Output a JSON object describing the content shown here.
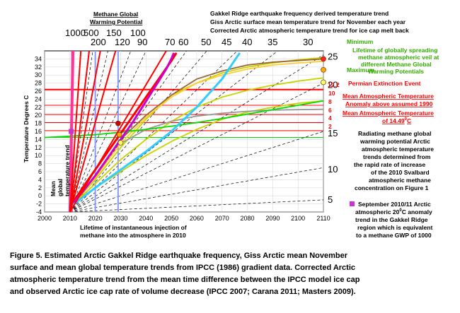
{
  "chart_data": {
    "type": "line",
    "title_lines": [
      "Gakkel Ridge earthquake frequency derived temperature trend",
      "Giss Arctic surface mean temperature trend for November each year",
      "Corrected Arctic atmospheric temperature trend for ice cap melt back"
    ],
    "potential_header": [
      "Methane Global",
      "Warming Potential"
    ],
    "ylabel": "Temperature Degrees C",
    "xlim": [
      2000,
      2110
    ],
    "ylim": [
      -4,
      36
    ],
    "x_ticks": [
      2000,
      2010,
      2020,
      2030,
      2040,
      2050,
      2060,
      2070,
      2080,
      2090,
      2100,
      2110
    ],
    "y_ticks": [
      -4,
      -2,
      0,
      2,
      4,
      6,
      8,
      10,
      12,
      14,
      16,
      18,
      20,
      22,
      24,
      26,
      28,
      30,
      32,
      34
    ],
    "gwp_top_labels": [
      {
        "text": "1000",
        "value": 1000
      },
      {
        "text": "500",
        "value": 500
      },
      {
        "text": "150",
        "value": 150
      },
      {
        "text": "100",
        "value": 100
      },
      {
        "text": "200",
        "value": 200
      },
      {
        "text": "120",
        "value": 120
      },
      {
        "text": "90",
        "value": 90
      },
      {
        "text": "70",
        "value": 70
      },
      {
        "text": "60",
        "value": 60
      },
      {
        "text": "50",
        "value": 50
      },
      {
        "text": "45",
        "value": 45
      },
      {
        "text": "40",
        "value": 40
      },
      {
        "text": "35",
        "value": 35
      },
      {
        "text": "30",
        "value": 30
      }
    ],
    "gwp_right_labels": [
      {
        "text": "25",
        "y": 34.5
      },
      {
        "text": "20",
        "y": 27.5
      },
      {
        "text": "15",
        "y": 15.5
      },
      {
        "text": "10",
        "y": 6.5
      },
      {
        "text": "5",
        "y": -1
      }
    ],
    "rays": [
      {
        "gwp": 1000,
        "end_x": 2011.2
      },
      {
        "gwp": 500,
        "end_x": 2014.3
      },
      {
        "gwp": 200,
        "end_x": 2017.6
      },
      {
        "gwp": 150,
        "end_x": 2019
      },
      {
        "gwp": 120,
        "end_x": 2022
      },
      {
        "gwp": 100,
        "end_x": 2025
      },
      {
        "gwp": 90,
        "end_x": 2028
      },
      {
        "gwp": 70,
        "end_x": 2034
      },
      {
        "gwp": 60,
        "end_x": 2040
      },
      {
        "gwp": 50,
        "end_x": 2048
      },
      {
        "gwp": 45,
        "end_x": 2056
      },
      {
        "gwp": 40,
        "end_x": 2064
      },
      {
        "gwp": 35,
        "end_x": 2076
      },
      {
        "gwp": 30,
        "end_x": 2092
      },
      {
        "gwp": 25,
        "end_x": 2110,
        "end_y": 35
      },
      {
        "gwp": 20,
        "end_x": 2110,
        "end_y": 28
      },
      {
        "gwp": 15,
        "end_x": 2110,
        "end_y": 16
      },
      {
        "gwp": 10,
        "end_x": 2110,
        "end_y": 7
      },
      {
        "gwp": 5,
        "end_x": 2110,
        "end_y": -1
      }
    ],
    "series": [
      {
        "color": "#c8d400",
        "points": [
          [
            2010,
            -2.8
          ],
          [
            2020,
            4
          ],
          [
            2030,
            12
          ],
          [
            2040,
            19
          ],
          [
            2050,
            25
          ],
          [
            2060,
            28
          ],
          [
            2070,
            30.5
          ],
          [
            2080,
            32
          ],
          [
            2090,
            33
          ],
          [
            2100,
            33.8
          ],
          [
            2110,
            34.3
          ]
        ]
      },
      {
        "color": "#c8d400",
        "points": [
          [
            2010,
            -2.8
          ],
          [
            2020,
            3
          ],
          [
            2030,
            9
          ],
          [
            2040,
            14
          ],
          [
            2050,
            18.5
          ],
          [
            2060,
            22
          ],
          [
            2070,
            24.5
          ],
          [
            2080,
            26.2
          ],
          [
            2090,
            27.5
          ],
          [
            2100,
            28.5
          ],
          [
            2110,
            29.3
          ]
        ]
      },
      {
        "color": "#c8d400",
        "points": [
          [
            2010,
            -2.8
          ],
          [
            2020,
            2
          ],
          [
            2030,
            6
          ],
          [
            2040,
            10
          ],
          [
            2050,
            13.5
          ],
          [
            2060,
            16.5
          ],
          [
            2070,
            19
          ],
          [
            2080,
            20.8
          ],
          [
            2090,
            22
          ],
          [
            2100,
            23
          ],
          [
            2110,
            23.6
          ]
        ]
      },
      {
        "color": "#ffcc33",
        "points": [
          [
            2010,
            -2.8
          ],
          [
            2020,
            4.5
          ],
          [
            2030,
            13
          ],
          [
            2040,
            19.5
          ],
          [
            2050,
            24.5
          ],
          [
            2060,
            28
          ],
          [
            2070,
            30
          ],
          [
            2080,
            31.5
          ],
          [
            2090,
            32.5
          ],
          [
            2100,
            33
          ],
          [
            2110,
            33.4
          ]
        ]
      },
      {
        "color": "#999999",
        "points": [
          [
            2030,
            13
          ],
          [
            2040,
            16.5
          ],
          [
            2050,
            18.5
          ],
          [
            2060,
            19.8
          ],
          [
            2070,
            20.5
          ],
          [
            2080,
            21
          ],
          [
            2090,
            21.3
          ],
          [
            2100,
            21.4
          ],
          [
            2110,
            21.5
          ]
        ]
      },
      {
        "color": "#996633",
        "points": [
          [
            2010,
            -2.8
          ],
          [
            2020,
            5
          ],
          [
            2030,
            14
          ],
          [
            2040,
            20
          ],
          [
            2050,
            25
          ],
          [
            2060,
            29
          ],
          [
            2070,
            31
          ],
          [
            2080,
            32.5
          ],
          [
            2090,
            33.2
          ],
          [
            2100,
            33.6
          ],
          [
            2110,
            34
          ]
        ]
      },
      {
        "color": "#00dd00",
        "points": [
          [
            2000,
            14.5
          ],
          [
            2010,
            14.8
          ],
          [
            2020,
            15.2
          ],
          [
            2030,
            15.8
          ],
          [
            2040,
            16.5
          ],
          [
            2050,
            17.3
          ],
          [
            2060,
            18.2
          ],
          [
            2070,
            19.2
          ],
          [
            2080,
            20.3
          ],
          [
            2090,
            21.4
          ],
          [
            2100,
            22.5
          ],
          [
            2110,
            23.6
          ]
        ]
      },
      {
        "color": "#ff0000",
        "points": [
          [
            2010,
            -2.8
          ],
          [
            2015,
            2
          ],
          [
            2020,
            6.5
          ],
          [
            2025,
            11
          ],
          [
            2030,
            15.5
          ],
          [
            2035,
            20
          ],
          [
            2040,
            24.5
          ],
          [
            2045,
            29
          ],
          [
            2050,
            33.5
          ],
          [
            2052,
            35.5
          ]
        ]
      },
      {
        "color": "#cc00cc",
        "points": [
          [
            2010,
            -2.8
          ],
          [
            2015,
            1
          ],
          [
            2020,
            5
          ],
          [
            2025,
            9.5
          ],
          [
            2030,
            14
          ],
          [
            2035,
            18.5
          ],
          [
            2040,
            23.5
          ],
          [
            2045,
            28.5
          ],
          [
            2048,
            31.5
          ],
          [
            2050,
            34
          ],
          [
            2051,
            35.5
          ]
        ]
      },
      {
        "color": "#33ccff",
        "points": [
          [
            2010,
            -2.8
          ],
          [
            2020,
            2
          ],
          [
            2030,
            6.5
          ],
          [
            2040,
            11
          ],
          [
            2050,
            16
          ],
          [
            2060,
            22
          ],
          [
            2070,
            29
          ],
          [
            2077,
            35.5
          ]
        ]
      }
    ],
    "guide_lines": [
      {
        "y": 26.4,
        "color": "#ff0000"
      },
      {
        "y": 22.5,
        "color": "#ff0000"
      },
      {
        "y": 20.2,
        "color": "#ff0000"
      },
      {
        "y": 18.2,
        "color": "#ff0000"
      },
      {
        "y": 16.2,
        "color": "#ff0000"
      },
      {
        "y": 14.5,
        "color": "#00dd00"
      }
    ],
    "vertical_lines": [
      {
        "x": 2010.8,
        "y_top": 36,
        "color": "#ff3399"
      },
      {
        "x": 2020,
        "y_top": 36,
        "color": "#8899ff"
      },
      {
        "x": 2029,
        "y_top": 36,
        "color": "#8899ff"
      }
    ],
    "markers": [
      {
        "x": 2110,
        "y": 34,
        "color": "#ff2222"
      },
      {
        "x": 2110,
        "y": 31.3,
        "color": "#ffaa00"
      },
      {
        "x": 2110,
        "y": 28.2,
        "color": "#ffff66"
      },
      {
        "x": 2029.5,
        "y": 15.2,
        "color": "#ffaa00"
      },
      {
        "x": 2030,
        "y": 13.2,
        "color": "#ffff66"
      },
      {
        "x": 2029,
        "y": 18,
        "color": "#cc0000"
      }
    ],
    "anomaly_marker": {
      "x": 2010.5,
      "y": 16,
      "color": "#cc33cc"
    },
    "right_labels": {
      "minimum": "Minimum",
      "maximum": "Maximum",
      "lifetime_green": [
        "Lifetime of globally spreading",
        "methane atmospheric veil at",
        "different Methane Global",
        "Warming Potentials"
      ],
      "permian": "Permian Extinction Event",
      "anomaly_values": [
        "12.2",
        "10",
        "8",
        "6",
        "4",
        "2"
      ],
      "mean_atm": [
        "Mean Atmospheric Temperature",
        "Anomaly above assumed 1990"
      ],
      "mean_atm_2": [
        "Mean Atmospheric Temperature",
        "of 14.49"
      ],
      "mean_atm_2_suffix": "C",
      "degree": "0",
      "radiating": [
        "Radiating methane global",
        "warming potential Arctic",
        "atmospheric temperature",
        "trends determined from",
        "the rapid rate of increase",
        "of the 2010 Svalbard",
        "atmospheric methane",
        "concentration on Figure 1"
      ],
      "september": [
        "September 2010/11 Arctic",
        "atmospheric 20",
        "C anomaly",
        "trend in the Gakkel Ridge",
        "region which is equivalent",
        "to a methane GWP of 1000"
      ],
      "mean_global": [
        "Mean",
        "global",
        "temperature trend"
      ],
      "lifetime_bottom": [
        "Lifetime of instantaneous injection of",
        "methane into the atmosphere in 2010"
      ]
    }
  },
  "caption": [
    "Figure 5.  Estimated Arctic Gakkel Ridge earthquake frequency, Giss Arctic mean November",
    "surface and mean global temperature trends from IPCC (1986) gradient data. Corrected Arctic",
    "atmospheric temperature trend from the mean time difference between the IPCC model ice cap",
    "and observed Arctic ice cap rate of volume decrease (IPCC 2007; Carana 2011; Masters 2009)."
  ]
}
